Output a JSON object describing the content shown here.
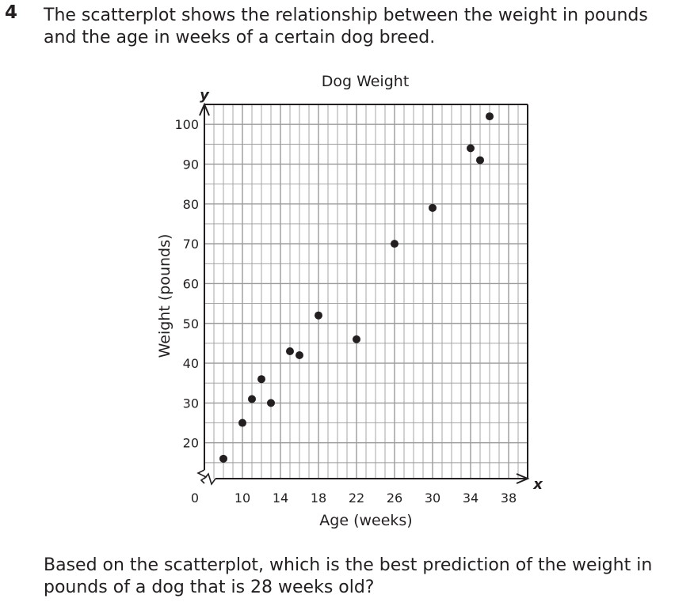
{
  "problem": {
    "number": "4",
    "prompt": "The scatterplot shows the relationship between the weight in pounds and the age in weeks of a certain dog breed.",
    "question": "Based on the scatterplot, which is the best prediction of the weight in pounds of a dog that is 28 weeks old?"
  },
  "chart_data": {
    "type": "scatter",
    "title": "Dog Weight",
    "xlabel": "Age (weeks)",
    "ylabel": "Weight (pounds)",
    "x_axis_letter": "x",
    "y_axis_letter": "y",
    "origin_label": "0",
    "xlim": [
      8,
      40
    ],
    "ylim": [
      10,
      105
    ],
    "x_ticks": [
      10,
      14,
      18,
      22,
      26,
      30,
      34,
      38
    ],
    "y_ticks": [
      20,
      30,
      40,
      50,
      60,
      70,
      80,
      90,
      100
    ],
    "x_tick_labels": [
      "10",
      "14",
      "18",
      "22",
      "26",
      "30",
      "34",
      "38"
    ],
    "y_tick_labels": [
      "20",
      "30",
      "40",
      "50",
      "60",
      "70",
      "80",
      "90",
      "100"
    ],
    "x_minor_step": 1,
    "y_minor_step": 5,
    "grid": true,
    "axis_breaks": [
      "x",
      "y"
    ],
    "points": [
      {
        "x": 8,
        "y": 16
      },
      {
        "x": 10,
        "y": 25
      },
      {
        "x": 11,
        "y": 31
      },
      {
        "x": 12,
        "y": 36
      },
      {
        "x": 13,
        "y": 30
      },
      {
        "x": 15,
        "y": 43
      },
      {
        "x": 16,
        "y": 42
      },
      {
        "x": 18,
        "y": 52
      },
      {
        "x": 22,
        "y": 46
      },
      {
        "x": 26,
        "y": 70
      },
      {
        "x": 30,
        "y": 79
      },
      {
        "x": 34,
        "y": 94
      },
      {
        "x": 35,
        "y": 91
      },
      {
        "x": 36,
        "y": 102
      }
    ],
    "colors": {
      "grid": "#9b9b9b",
      "axis": "#231f20",
      "point": "#231f20"
    }
  }
}
